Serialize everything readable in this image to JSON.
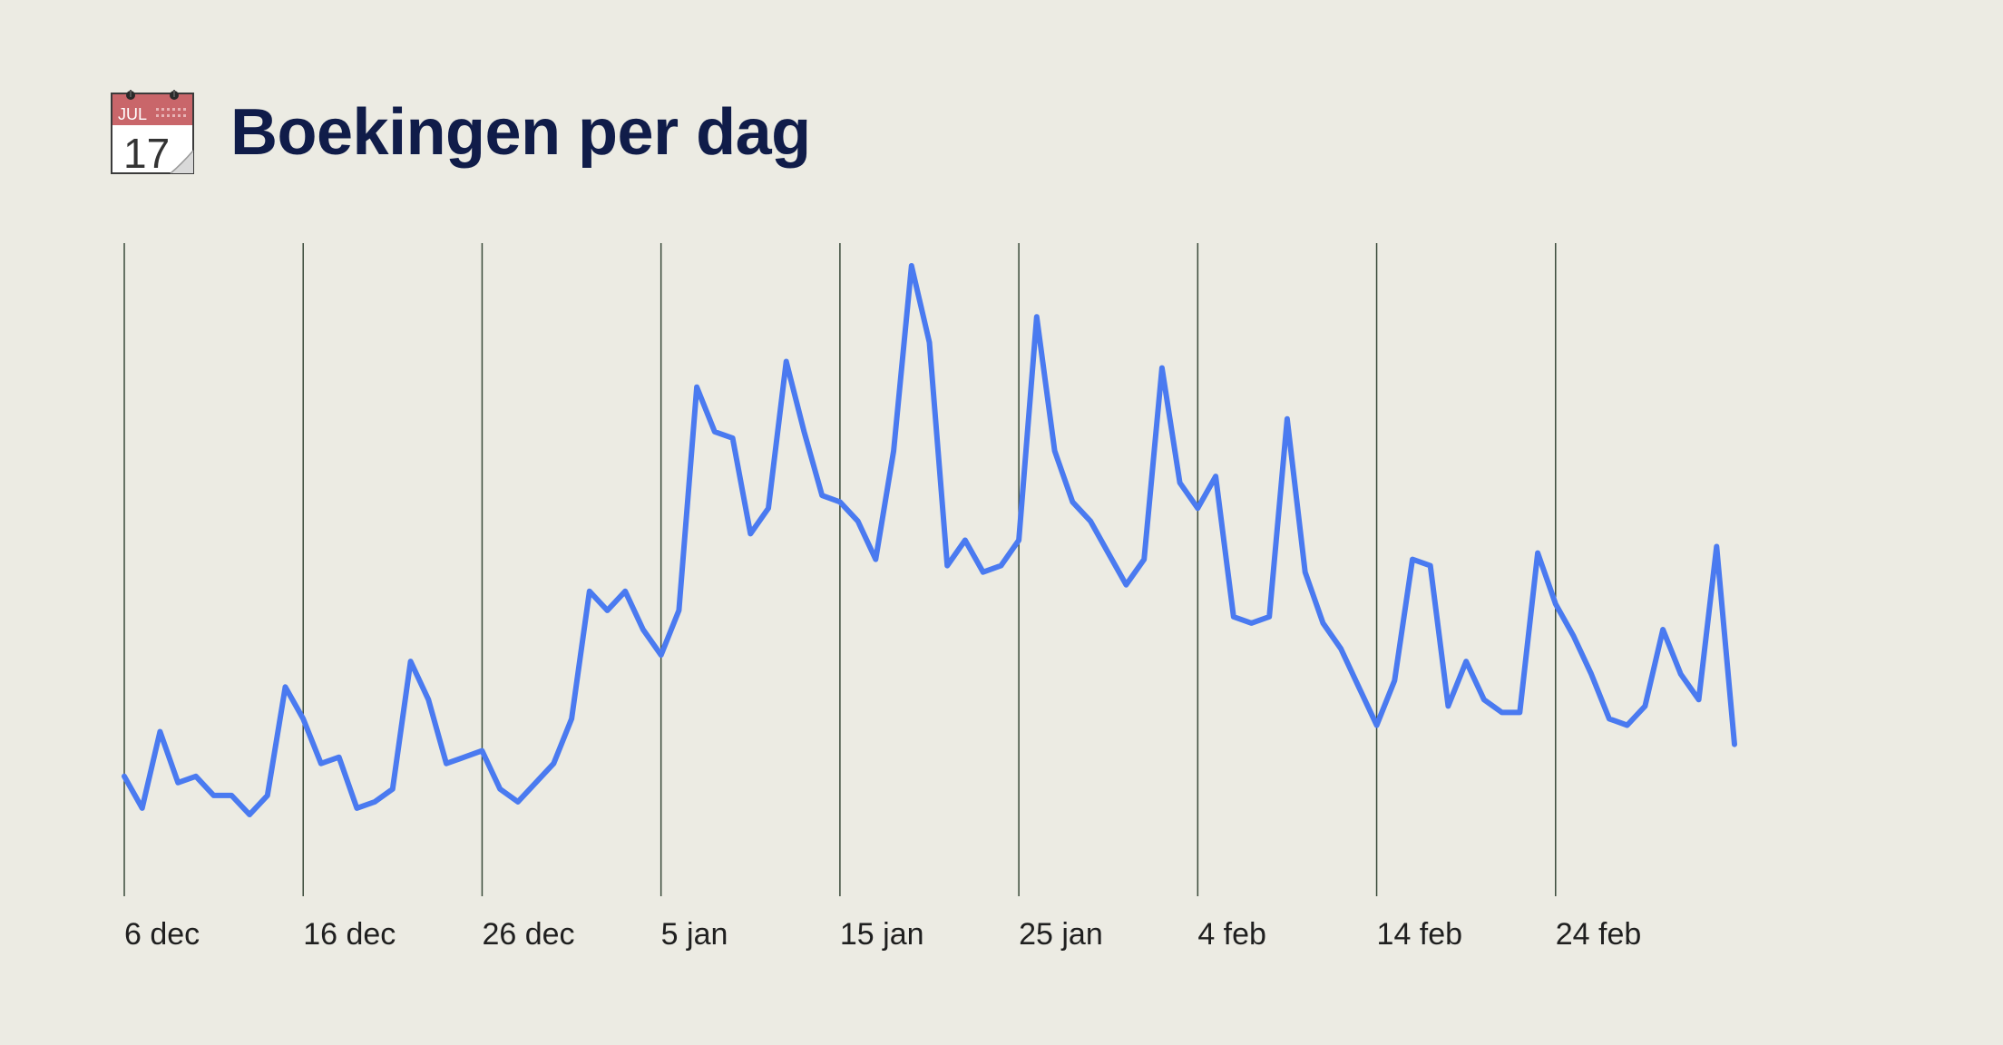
{
  "header": {
    "icon": "calendar-icon",
    "icon_month": "JUL",
    "icon_day": "17",
    "title": "Boekingen per dag"
  },
  "colors": {
    "background": "#ecebe3",
    "title": "#101c49",
    "line": "#4a7af0",
    "gridline": "#3a4a3a",
    "icon_header": "#c9666a"
  },
  "chart_data": {
    "type": "line",
    "title": "Boekingen per dag",
    "xlabel": "",
    "ylabel": "",
    "grid": "vertical",
    "legend": "none",
    "x_start": "6 dec",
    "x_end": "24 feb",
    "xticks": [
      "6 dec",
      "16 dec",
      "26 dec",
      "5 jan",
      "15 jan",
      "25 jan",
      "4 feb",
      "14 feb",
      "24 feb"
    ],
    "ylim": [
      0,
      100
    ],
    "series": [
      {
        "values": [
          17,
          12,
          24,
          16,
          17,
          14,
          14,
          11,
          14,
          31,
          26,
          19,
          20,
          12,
          13,
          15,
          35,
          29,
          19,
          20,
          21,
          15,
          13,
          16,
          19,
          26,
          46,
          43,
          46,
          40,
          36,
          43,
          78,
          71,
          70,
          55,
          59,
          82,
          71,
          61,
          60,
          57,
          51,
          68,
          97,
          85,
          50,
          54,
          49,
          50,
          54,
          89,
          68,
          60,
          57,
          52,
          47,
          51,
          81,
          63,
          59,
          64,
          42,
          41,
          42,
          73,
          49,
          41,
          37,
          31,
          25,
          32,
          51,
          50,
          28,
          35,
          29,
          27,
          27,
          52,
          44,
          39,
          33,
          26,
          25,
          28,
          40,
          33,
          29,
          53,
          22
        ]
      }
    ]
  }
}
